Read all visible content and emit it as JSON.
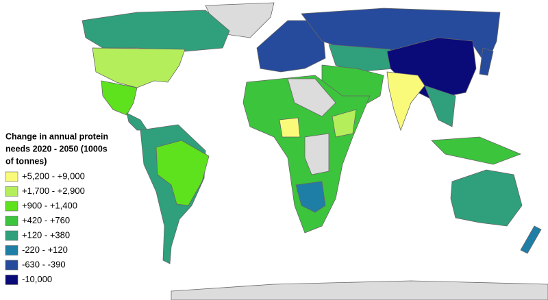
{
  "legend": {
    "title_lines": [
      "Change in annual protein",
      "needs 2020 - 2050 (1000s",
      "of tonnes)"
    ],
    "items": [
      {
        "label": "+5,200 - +9,000",
        "color": "#fafa7a"
      },
      {
        "label": "+1,700 - +2,900",
        "color": "#b4ee5a"
      },
      {
        "label": "+900 - +1,400",
        "color": "#5ee21e"
      },
      {
        "label": "+420 - +760",
        "color": "#3cc43c"
      },
      {
        "label": "+120 - +380",
        "color": "#2f9f7c"
      },
      {
        "label": "-220 - +120",
        "color": "#1f7ea6"
      },
      {
        "label": "-630 - -390",
        "color": "#264a9c"
      },
      {
        "label": "-10,000",
        "color": "#0a0a78"
      }
    ]
  }
}
